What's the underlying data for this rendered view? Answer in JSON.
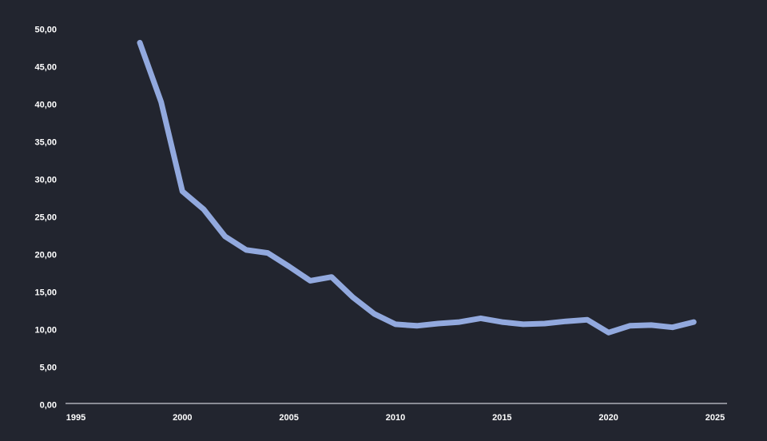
{
  "chart_data": {
    "type": "line",
    "title": "",
    "xlabel": "",
    "ylabel": "",
    "x": [
      1998,
      1999,
      2000,
      2001,
      2002,
      2003,
      2004,
      2005,
      2006,
      2007,
      2008,
      2009,
      2010,
      2011,
      2012,
      2013,
      2014,
      2015,
      2016,
      2017,
      2018,
      2019,
      2020,
      2021,
      2022,
      2023,
      2024
    ],
    "values": [
      48.2,
      40.3,
      28.4,
      26.0,
      22.4,
      20.6,
      20.2,
      18.4,
      16.5,
      17.0,
      14.3,
      12.1,
      10.7,
      10.5,
      10.8,
      11.0,
      11.5,
      11.0,
      10.7,
      10.8,
      11.1,
      11.3,
      9.6,
      10.5,
      10.6,
      10.3,
      11.0
    ],
    "xlim": [
      1994.5,
      2025.6
    ],
    "ylim": [
      0,
      50
    ],
    "grid": false,
    "legend": "none",
    "x_ticks": [
      {
        "label": "1995",
        "value": 1995
      },
      {
        "label": "2000",
        "value": 2000
      },
      {
        "label": "2005",
        "value": 2005
      },
      {
        "label": "2010",
        "value": 2010
      },
      {
        "label": "2015",
        "value": 2015
      },
      {
        "label": "2020",
        "value": 2020
      },
      {
        "label": "2025",
        "value": 2025
      }
    ],
    "y_ticks": [
      {
        "label": "0,00",
        "value": 0
      },
      {
        "label": "5,00",
        "value": 5
      },
      {
        "label": "10,00",
        "value": 10
      },
      {
        "label": "15,00",
        "value": 15
      },
      {
        "label": "20,00",
        "value": 20
      },
      {
        "label": "25,00",
        "value": 25
      },
      {
        "label": "30,00",
        "value": 30
      },
      {
        "label": "35,00",
        "value": 35
      },
      {
        "label": "40,00",
        "value": 40
      },
      {
        "label": "45,00",
        "value": 45
      },
      {
        "label": "50,00",
        "value": 50
      }
    ],
    "colors": {
      "background": "#22252f",
      "line": "#92a9de",
      "axis": "#c9cbd2",
      "tick_label": "#ffffff"
    },
    "line_width": 7
  }
}
